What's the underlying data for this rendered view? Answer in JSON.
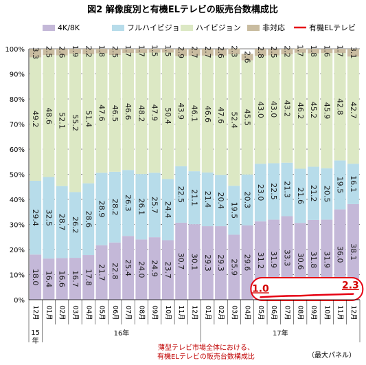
{
  "chart_data": {
    "type": "bar",
    "stacked": true,
    "title": "図2 解像度別と有機ELテレビの販売台数構成比",
    "ylim": [
      0,
      100
    ],
    "yticks": [
      "0%",
      "10%",
      "20%",
      "30%",
      "40%",
      "50%",
      "60%",
      "70%",
      "80%",
      "90%",
      "100%"
    ],
    "grid": true,
    "legend_position": "top",
    "months": [
      "12月",
      "01月",
      "02月",
      "03月",
      "04月",
      "05月",
      "06月",
      "07月",
      "08月",
      "09月",
      "10月",
      "11月",
      "12月",
      "01月",
      "02月",
      "03月",
      "04月",
      "05月",
      "06月",
      "07月",
      "08月",
      "09月",
      "10月",
      "11月",
      "12月"
    ],
    "years": [
      {
        "label": "15\n年",
        "index": 0
      },
      {
        "label": "16年",
        "index": 6
      },
      {
        "label": "17年",
        "index": 19
      }
    ],
    "series": [
      {
        "name": "4K/8K",
        "color": "#c4b8d8",
        "values": [
          18.0,
          16.4,
          16.6,
          16.7,
          17.8,
          21.7,
          22.8,
          25.4,
          24.0,
          24.9,
          23.7,
          30.7,
          30.1,
          29.3,
          29.3,
          25.9,
          29.6,
          31.2,
          31.9,
          33.3,
          30.6,
          31.8,
          31.9,
          36.0,
          38.1
        ]
      },
      {
        "name": "フルハイビジョン",
        "color": "#b7dcea",
        "values": [
          29.4,
          32.5,
          28.7,
          26.2,
          28.6,
          28.9,
          28.2,
          26.3,
          26.1,
          25.7,
          24.4,
          22.5,
          21.1,
          21.4,
          20.4,
          19.5,
          20.3,
          23.0,
          22.5,
          21.3,
          21.6,
          21.2,
          20.5,
          19.5,
          16.1
        ]
      },
      {
        "name": "ハイビジョン",
        "color": "#dce8c4",
        "values": [
          49.2,
          48.6,
          52.1,
          55.2,
          51.4,
          47.6,
          46.5,
          46.6,
          48.2,
          47.9,
          50.4,
          43.9,
          46.1,
          46.6,
          47.6,
          52.4,
          45.5,
          43.0,
          43.0,
          43.2,
          46.2,
          45.2,
          45.9,
          42.8,
          42.7
        ]
      },
      {
        "name": "非対応",
        "color": "#c9bca0",
        "values": [
          3.3,
          2.5,
          2.6,
          1.9,
          2.2,
          1.8,
          2.5,
          1.7,
          1.7,
          1.5,
          1.5,
          2.9,
          2.7,
          2.7,
          2.6,
          2.3,
          2.6,
          2.8,
          2.5,
          2.2,
          1.7,
          1.8,
          1.6,
          1.7,
          3.1
        ]
      },
      {
        "name": "有機ELテレビ",
        "color": "#e60012",
        "type": "line",
        "values": [
          null,
          null,
          null,
          null,
          null,
          null,
          null,
          null,
          null,
          null,
          null,
          null,
          null,
          null,
          null,
          null,
          null,
          1.0,
          1.3,
          1.5,
          1.6,
          1.8,
          2.0,
          2.1,
          2.3
        ]
      }
    ],
    "oled_labels": {
      "first": "1.0",
      "last": "2.3"
    },
    "annotation": "薄型テレビ市場全体における、\n有機ELテレビの販売台数構成比",
    "unit_note": "（最大パネル）"
  }
}
